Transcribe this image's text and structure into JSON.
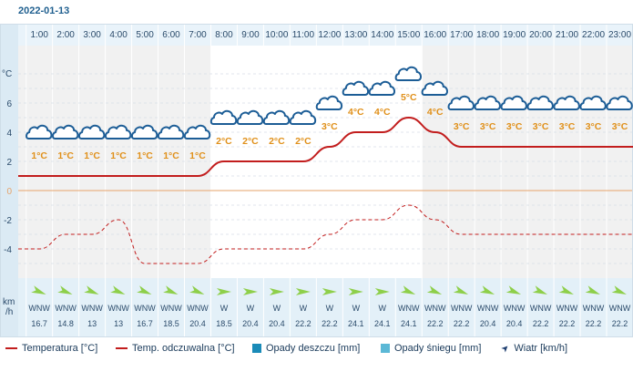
{
  "date": "2022-01-13",
  "y_unit": "°C",
  "wind_unit": [
    "km",
    "/h"
  ],
  "legend": [
    {
      "label": "Temperatura [°C]",
      "color": "#c21d1d",
      "kind": "line"
    },
    {
      "label": "Temp. odczuwalna [°C]",
      "color": "#c21d1d",
      "kind": "line"
    },
    {
      "label": "Opady deszczu [mm]",
      "color": "#1a8bb8",
      "kind": "box"
    },
    {
      "label": "Opady śniegu [mm]",
      "color": "#5bb8d6",
      "kind": "box"
    },
    {
      "label": "Wiatr [km/h]",
      "color": "#1f3f70",
      "kind": "wind"
    }
  ],
  "chart_data": {
    "type": "line",
    "title": "",
    "x": [
      "1:00",
      "2:00",
      "3:00",
      "4:00",
      "5:00",
      "6:00",
      "7:00",
      "8:00",
      "9:00",
      "10:00",
      "11:00",
      "12:00",
      "13:00",
      "14:00",
      "15:00",
      "16:00",
      "17:00",
      "18:00",
      "19:00",
      "20:00",
      "21:00",
      "22:00",
      "23:00"
    ],
    "ylim": [
      -5,
      8
    ],
    "yticks": [
      6,
      4,
      2,
      0,
      -2,
      -4
    ],
    "series": [
      {
        "name": "Temperatura [°C]",
        "style": "solid",
        "values": [
          1,
          1,
          1,
          1,
          1,
          1,
          1,
          2,
          2,
          2,
          2,
          3,
          4,
          4,
          5,
          4,
          3,
          3,
          3,
          3,
          3,
          3,
          3
        ]
      },
      {
        "name": "Temp. odczuwalna [°C]",
        "style": "dashed",
        "values": [
          -4,
          -3,
          -3,
          -2,
          -5,
          -5,
          -5,
          -4,
          -4,
          -4,
          -4,
          -3,
          -2,
          -2,
          -1,
          -2,
          -3,
          -3,
          -3,
          -3,
          -3,
          -3,
          -3
        ]
      }
    ],
    "temp_labels": [
      "1°C",
      "1°C",
      "1°C",
      "1°C",
      "1°C",
      "1°C",
      "1°C",
      "2°C",
      "2°C",
      "2°C",
      "2°C",
      "3°C",
      "4°C",
      "4°C",
      "5°C",
      "4°C",
      "3°C",
      "3°C",
      "3°C",
      "3°C",
      "3°C",
      "3°C",
      "3°C"
    ],
    "wind_dir": [
      "WNW",
      "WNW",
      "WNW",
      "WNW",
      "WNW",
      "WNW",
      "WNW",
      "W",
      "W",
      "W",
      "W",
      "W",
      "W",
      "W",
      "WNW",
      "WNW",
      "WNW",
      "WNW",
      "WNW",
      "WNW",
      "WNW",
      "WNW",
      "WNW"
    ],
    "wind_speed": [
      "16.7",
      "14.8",
      "13",
      "13",
      "16.7",
      "18.5",
      "20.4",
      "18.5",
      "20.4",
      "20.4",
      "22.2",
      "22.2",
      "24.1",
      "24.1",
      "24.1",
      "22.2",
      "22.2",
      "20.4",
      "20.4",
      "22.2",
      "22.2",
      "22.2",
      "22.2"
    ],
    "wind_icon": "wind-arrow-icon",
    "weather_icon": "cloud-icon",
    "grid": true
  }
}
